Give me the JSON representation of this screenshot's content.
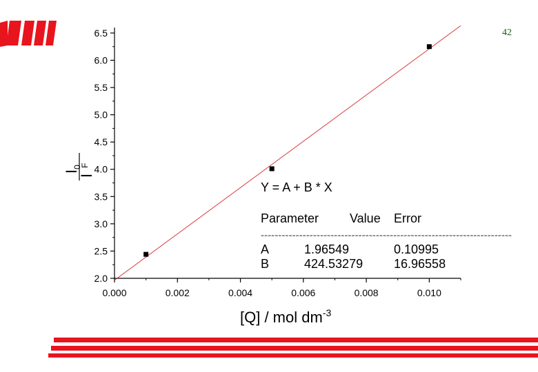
{
  "page_number": "42",
  "brand_color": "#e8141e",
  "chart_data": {
    "type": "scatter",
    "title": "",
    "xlabel": "[Q] / mol dm",
    "xlabel_superscript": "-3",
    "ylabel_main": "I",
    "ylabel_sub": "0",
    "ylabel_den": "I",
    "ylabel_den_sub": "F",
    "xlim": [
      0.0,
      0.011
    ],
    "ylim": [
      2.0,
      6.6
    ],
    "x_ticks": [
      0.0,
      0.002,
      0.004,
      0.006,
      0.008,
      0.01
    ],
    "x_tick_labels": [
      "0.000",
      "0.002",
      "0.004",
      "0.006",
      "0.008",
      "0.010"
    ],
    "y_ticks": [
      2.0,
      2.5,
      3.0,
      3.5,
      4.0,
      4.5,
      5.0,
      5.5,
      6.0,
      6.5
    ],
    "y_tick_labels": [
      "2.0",
      "2.5",
      "3.0",
      "3.5",
      "4.0",
      "4.5",
      "5.0",
      "5.5",
      "6.0",
      "6.5"
    ],
    "series": [
      {
        "name": "data",
        "x": [
          0.001,
          0.005,
          0.01
        ],
        "y": [
          2.44,
          4.01,
          6.25
        ]
      }
    ],
    "fit_line": {
      "intercept": 1.96549,
      "slope": 424.53279,
      "x_range": [
        0.0,
        0.011
      ],
      "color": "#d9262b"
    },
    "fit_table": {
      "equation": "Y = A + B * X",
      "headers": [
        "Parameter",
        "Value",
        "Error"
      ],
      "rule": "------------------------------------------------------------------------",
      "rows": [
        {
          "param": "A",
          "value": "1.96549",
          "error": "0.10995"
        },
        {
          "param": "B",
          "value": "424.53279",
          "error": "16.96558"
        }
      ]
    },
    "grid": false,
    "legend": "none"
  }
}
